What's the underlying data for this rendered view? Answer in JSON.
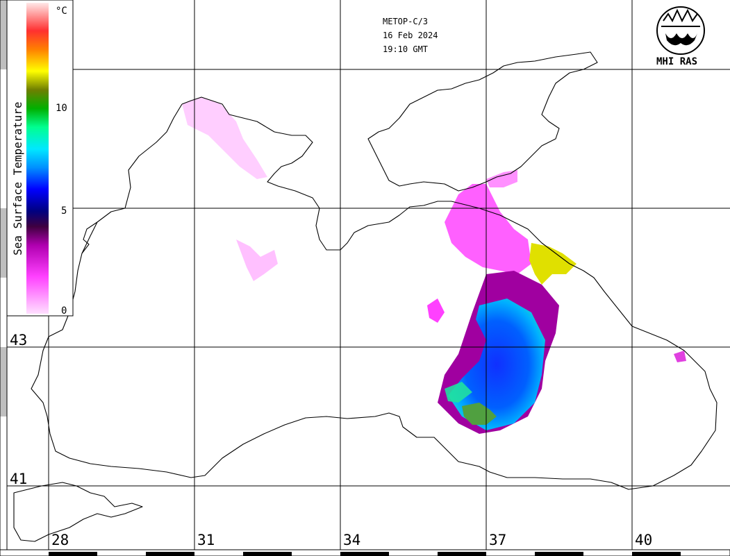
{
  "header": {
    "satellite": "METOP-C/3",
    "date": "16 Feb 2024",
    "time": "19:10 GMT"
  },
  "logo": {
    "label": "MHI RAS",
    "icon": "mhi-ras-logo-icon"
  },
  "legend": {
    "title": "Sea Surface Temperature",
    "unit": "°C",
    "ticks": [
      "0",
      "5",
      "10"
    ],
    "colors": [
      "#ffd0ff",
      "#ff40ff",
      "#e000e0",
      "#600060",
      "#000060",
      "#0000ff",
      "#0080ff",
      "#00e0ff",
      "#00ff80",
      "#00c000",
      "#808000",
      "#ffff00",
      "#ff8000",
      "#ff2020",
      "#ff8080",
      "#ffe0e0"
    ]
  },
  "map": {
    "longitude_labels": [
      "28",
      "31",
      "34",
      "37",
      "40"
    ],
    "latitude_labels": [
      "43",
      "41"
    ]
  }
}
